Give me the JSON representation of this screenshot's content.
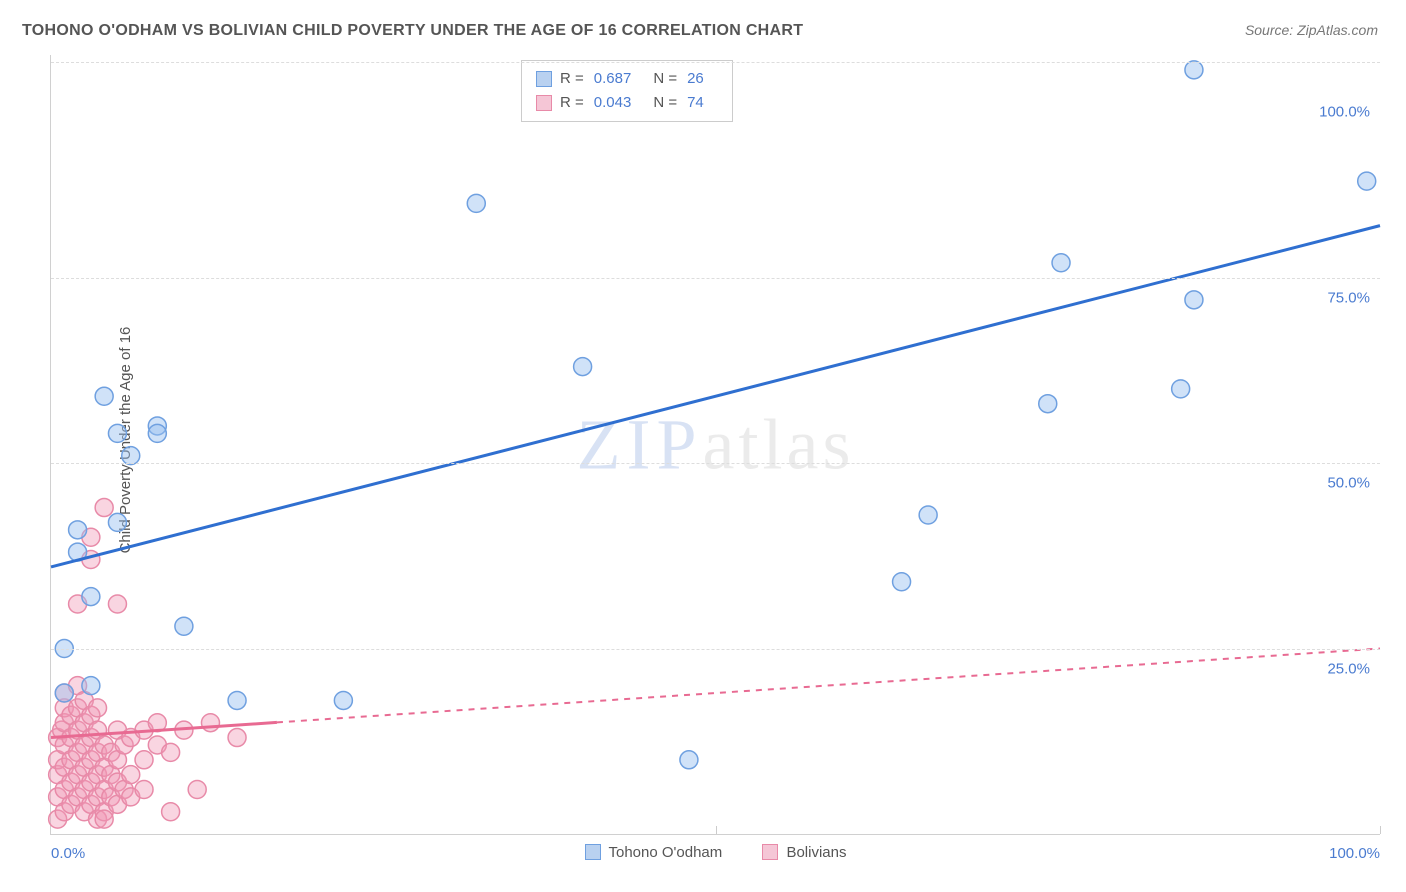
{
  "title": "TOHONO O'ODHAM VS BOLIVIAN CHILD POVERTY UNDER THE AGE OF 16 CORRELATION CHART",
  "source": "Source: ZipAtlas.com",
  "ylabel": "Child Poverty Under the Age of 16",
  "watermark": {
    "part1": "ZIP",
    "part2": "atlas"
  },
  "chart": {
    "type": "scatter",
    "xlim": [
      0,
      100
    ],
    "ylim": [
      0,
      105
    ],
    "x_ticks": [
      0,
      50,
      100
    ],
    "y_ticks": [
      25,
      50,
      75,
      100
    ],
    "x_tick_labels": {
      "0": "0.0%",
      "100": "100.0%"
    },
    "y_tick_labels": {
      "25": "25.0%",
      "50": "50.0%",
      "75": "75.0%",
      "100": "100.0%"
    },
    "grid_color": "#dddddd",
    "background_color": "#ffffff",
    "marker_radius": 9,
    "marker_border_width": 1.5,
    "series": [
      {
        "name": "Tohono O'odham",
        "color_fill": "rgba(150,190,240,0.45)",
        "color_stroke": "#6fa0e0",
        "swatch_fill": "#b9d1f0",
        "swatch_border": "#6fa0e0",
        "R": "0.687",
        "N": "26",
        "trend": {
          "x1": 0,
          "y1": 36,
          "x2": 100,
          "y2": 82,
          "color": "#2f6fd0",
          "dash": "none",
          "width": 3
        },
        "points": [
          [
            1,
            25
          ],
          [
            2,
            38
          ],
          [
            2,
            41
          ],
          [
            3,
            32
          ],
          [
            4,
            59
          ],
          [
            5,
            42
          ],
          [
            5,
            54
          ],
          [
            6,
            51
          ],
          [
            8,
            55
          ],
          [
            8,
            54
          ],
          [
            10,
            28
          ],
          [
            14,
            18
          ],
          [
            22,
            18
          ],
          [
            32,
            85
          ],
          [
            40,
            63
          ],
          [
            48,
            10
          ],
          [
            64,
            34
          ],
          [
            66,
            43
          ],
          [
            75,
            58
          ],
          [
            76,
            77
          ],
          [
            85,
            60
          ],
          [
            86,
            72
          ],
          [
            86,
            103
          ],
          [
            99,
            88
          ],
          [
            3,
            20
          ],
          [
            1,
            19
          ]
        ]
      },
      {
        "name": "Bolivians",
        "color_fill": "rgba(240,150,180,0.40)",
        "color_stroke": "#e88aa8",
        "swatch_fill": "#f5c6d6",
        "swatch_border": "#e88aa8",
        "R": "0.043",
        "N": "74",
        "trend": {
          "x1": 0,
          "y1": 13,
          "x2": 100,
          "y2": 25,
          "color": "#e86a92",
          "dash": "6,6",
          "width": 2,
          "solid_until": 17
        },
        "points": [
          [
            0.5,
            2
          ],
          [
            0.5,
            5
          ],
          [
            0.5,
            8
          ],
          [
            0.5,
            10
          ],
          [
            0.5,
            13
          ],
          [
            0.8,
            14
          ],
          [
            1,
            3
          ],
          [
            1,
            6
          ],
          [
            1,
            9
          ],
          [
            1,
            12
          ],
          [
            1,
            15
          ],
          [
            1,
            17
          ],
          [
            1,
            19
          ],
          [
            1.5,
            4
          ],
          [
            1.5,
            7
          ],
          [
            1.5,
            10
          ],
          [
            1.5,
            13
          ],
          [
            1.5,
            16
          ],
          [
            2,
            5
          ],
          [
            2,
            8
          ],
          [
            2,
            11
          ],
          [
            2,
            14
          ],
          [
            2,
            17
          ],
          [
            2,
            20
          ],
          [
            2,
            31
          ],
          [
            2.5,
            3
          ],
          [
            2.5,
            6
          ],
          [
            2.5,
            9
          ],
          [
            2.5,
            12
          ],
          [
            2.5,
            15
          ],
          [
            2.5,
            18
          ],
          [
            3,
            4
          ],
          [
            3,
            7
          ],
          [
            3,
            10
          ],
          [
            3,
            13
          ],
          [
            3,
            16
          ],
          [
            3,
            37
          ],
          [
            3,
            40
          ],
          [
            3.5,
            2
          ],
          [
            3.5,
            5
          ],
          [
            3.5,
            8
          ],
          [
            3.5,
            11
          ],
          [
            3.5,
            14
          ],
          [
            3.5,
            17
          ],
          [
            4,
            3
          ],
          [
            4,
            6
          ],
          [
            4,
            9
          ],
          [
            4,
            12
          ],
          [
            4,
            44
          ],
          [
            4,
            2
          ],
          [
            4.5,
            5
          ],
          [
            4.5,
            8
          ],
          [
            4.5,
            11
          ],
          [
            5,
            4
          ],
          [
            5,
            7
          ],
          [
            5,
            10
          ],
          [
            5,
            14
          ],
          [
            5,
            31
          ],
          [
            5.5,
            6
          ],
          [
            5.5,
            12
          ],
          [
            6,
            5
          ],
          [
            6,
            8
          ],
          [
            6,
            13
          ],
          [
            7,
            10
          ],
          [
            7,
            14
          ],
          [
            7,
            6
          ],
          [
            8,
            12
          ],
          [
            8,
            15
          ],
          [
            9,
            3
          ],
          [
            9,
            11
          ],
          [
            10,
            14
          ],
          [
            11,
            6
          ],
          [
            12,
            15
          ],
          [
            14,
            13
          ]
        ]
      }
    ],
    "y_gridlines": [
      25,
      50,
      75,
      104
    ],
    "x_gridlines": [
      50,
      100
    ]
  },
  "stats_legend": {
    "r_label": "R =",
    "n_label": "N ="
  },
  "series_legend_label_1": "Tohono O'odham",
  "series_legend_label_2": "Bolivians"
}
